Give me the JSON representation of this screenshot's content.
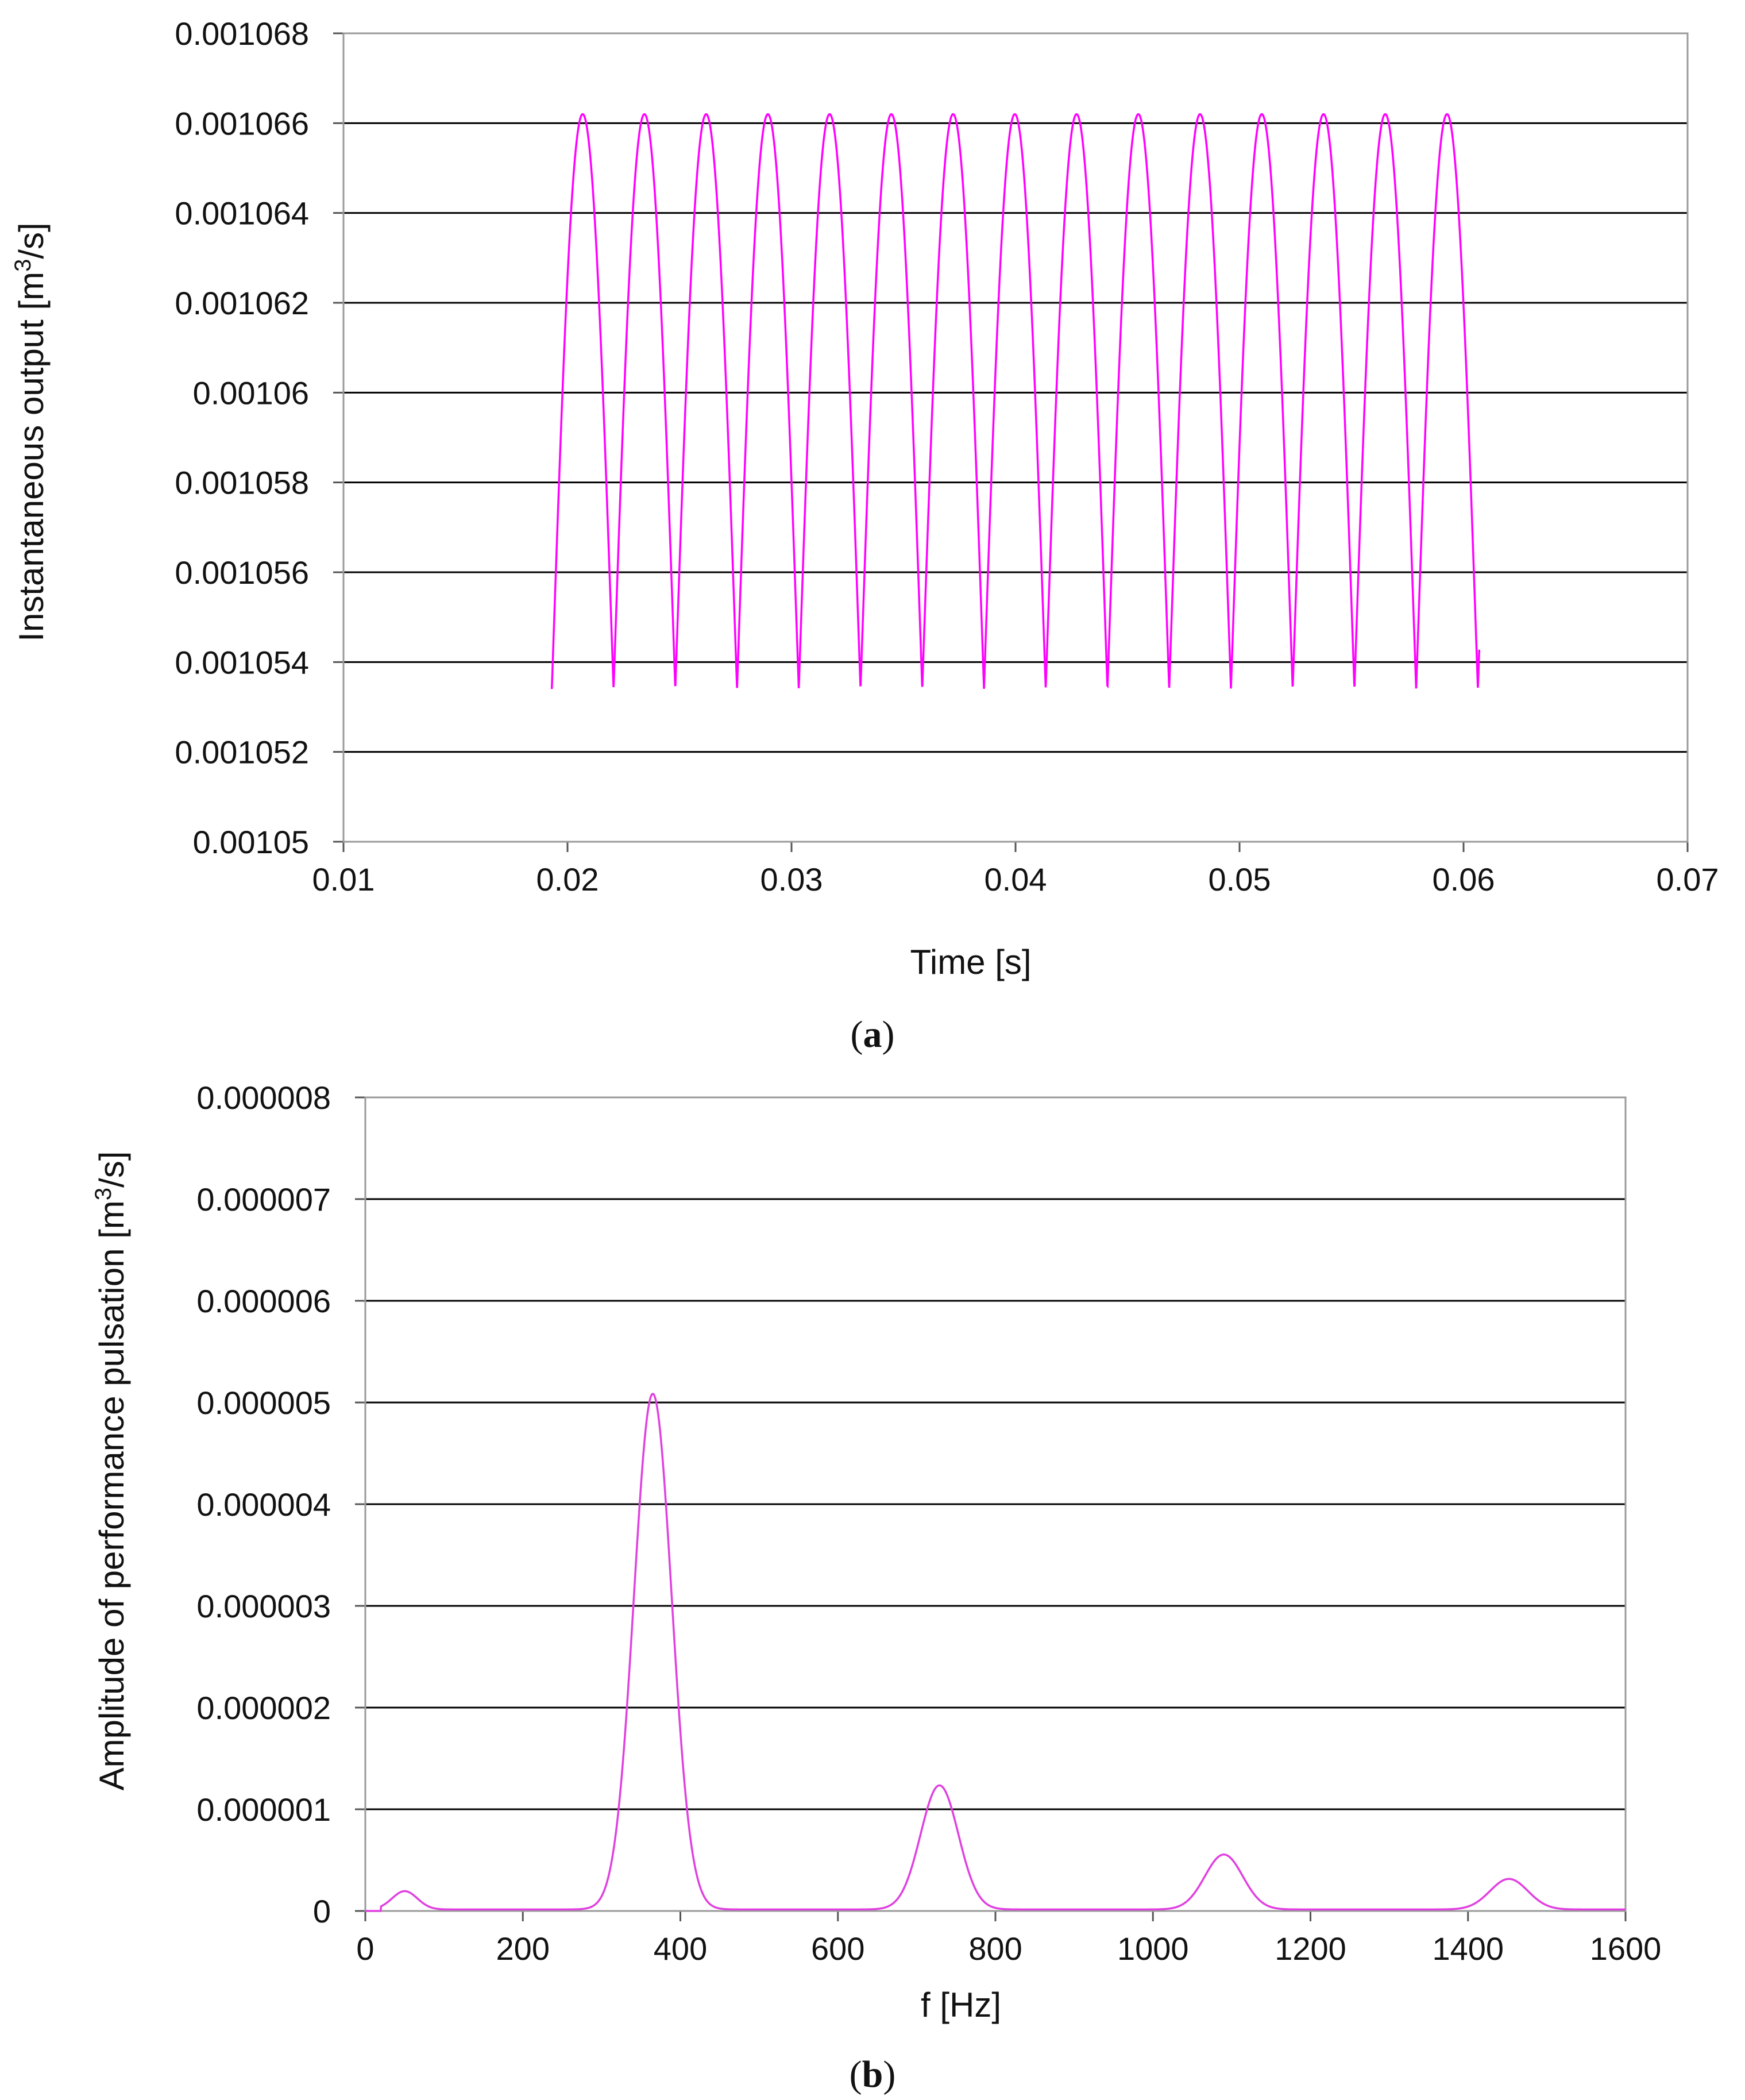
{
  "chart_data": [
    {
      "type": "line",
      "panel_label": "a",
      "xlabel": "Time  [s]",
      "ylabel": "Instantaneous  output  [m3/s]",
      "xlim": [
        0.01,
        0.07
      ],
      "ylim": [
        0.00105,
        0.001068
      ],
      "x_ticks": [
        "0.01",
        "0.02",
        "0.03",
        "0.04",
        "0.05",
        "0.06",
        "0.07"
      ],
      "y_ticks": [
        "0.00105",
        "0.001052",
        "0.001054",
        "0.001056",
        "0.001058",
        "0.00106",
        "0.001062",
        "0.001064",
        "0.001066",
        "0.001068"
      ],
      "grid": true,
      "series": [
        {
          "color": "#ff00ff",
          "waveform": "rectified-sine",
          "x_start": 0.0193,
          "x_end": 0.0607,
          "pulse_period": 0.002756,
          "peak": 0.0010662,
          "trough": 0.0010534
        }
      ]
    },
    {
      "type": "line",
      "panel_label": "b",
      "xlabel": "f [Hz]",
      "ylabel": "Amplitude  of performance pulsation  [m3/s]",
      "xlim": [
        0,
        1600
      ],
      "ylim": [
        0,
        8e-06
      ],
      "x_ticks": [
        "0",
        "200",
        "400",
        "600",
        "800",
        "1000",
        "1200",
        "1400",
        "1600"
      ],
      "y_ticks": [
        "0",
        "0.000001",
        "0.000002",
        "0.000003",
        "0.000004",
        "0.000005",
        "0.000006",
        "0.000007",
        "0.000008"
      ],
      "grid": true,
      "series": [
        {
          "color": "#e040e0",
          "peaks": [
            {
              "f": 50,
              "amplitude": 1.8e-07
            },
            {
              "f": 365,
              "amplitude": 5.07e-06
            },
            {
              "f": 729,
              "amplitude": 1.22e-06
            },
            {
              "f": 1090,
              "amplitude": 5.4e-07
            },
            {
              "f": 1452,
              "amplitude": 3e-07
            }
          ]
        }
      ]
    }
  ],
  "captions": {
    "a": {
      "open": "(",
      "letter": "a",
      "close": ")"
    },
    "b": {
      "open": "(",
      "letter": "b",
      "close": ")"
    }
  },
  "units": {
    "a": {
      "label_prefix": "Instantaneous  output  [m",
      "sup": "3",
      "label_suffix": "/s]"
    },
    "b": {
      "label_prefix": "Amplitude  of performance pulsation  [m",
      "sup": "3",
      "label_suffix": "/s]"
    }
  }
}
